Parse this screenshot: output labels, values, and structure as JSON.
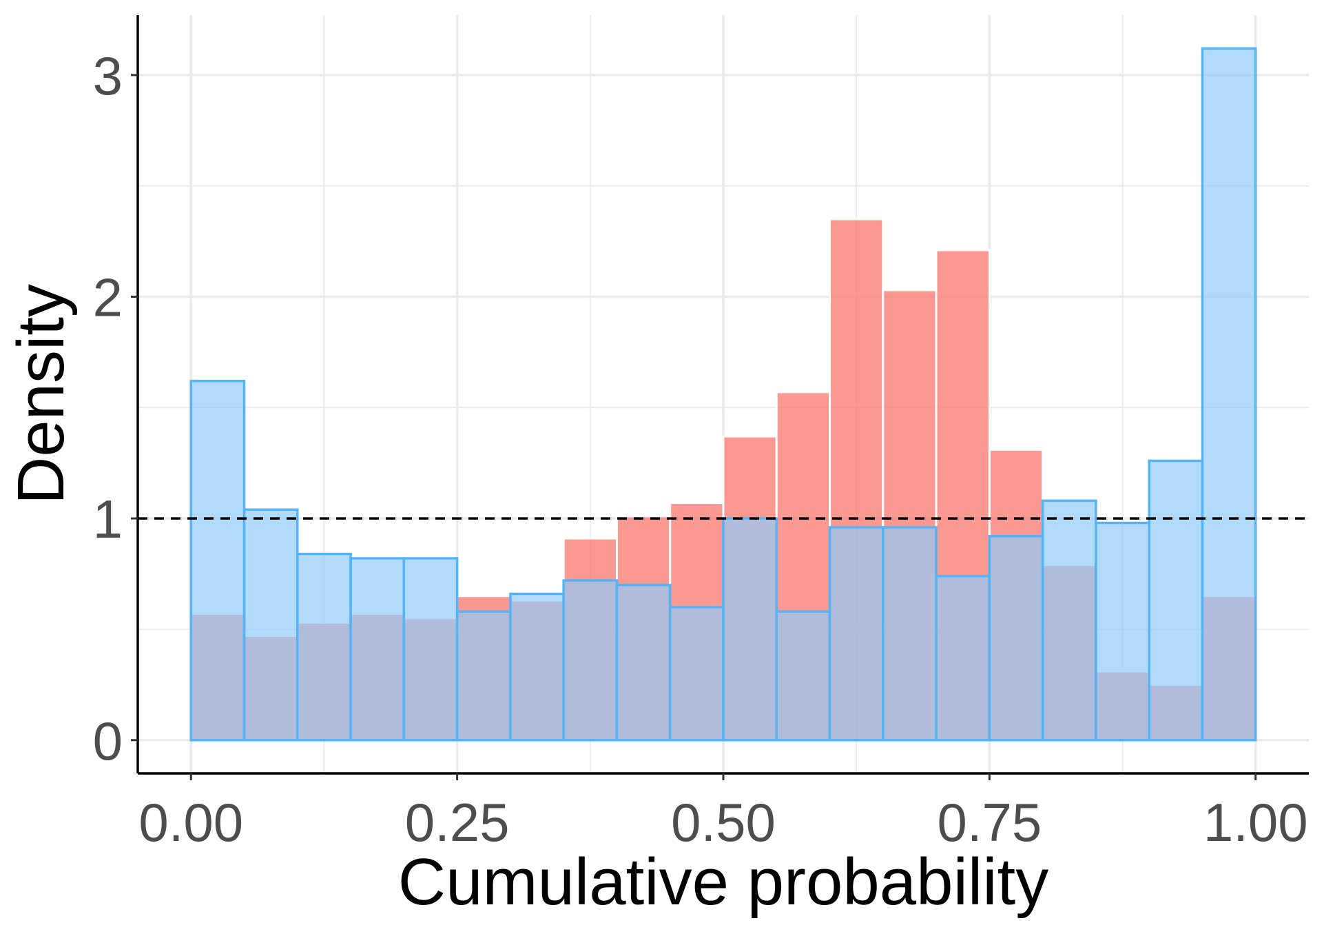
{
  "chart_data": {
    "type": "histogram",
    "xlabel": "Cumulative probability",
    "ylabel": "Density",
    "xlim": [
      -0.05,
      1.05
    ],
    "ylim": [
      -0.15,
      3.27
    ],
    "x_ticks": [
      0.0,
      0.25,
      0.5,
      0.75,
      1.0
    ],
    "x_tick_labels": [
      "0.00",
      "0.25",
      "0.50",
      "0.75",
      "1.00"
    ],
    "y_ticks": [
      0,
      1,
      2,
      3
    ],
    "y_tick_labels": [
      "0",
      "1",
      "2",
      "3"
    ],
    "y_minor_ticks": [
      0.5,
      1.5,
      2.5
    ],
    "x_minor_ticks": [
      0.125,
      0.375,
      0.625,
      0.875
    ],
    "reference_line": {
      "y": 1,
      "style": "dashed",
      "color": "#000000"
    },
    "bins": [
      0.0,
      0.05,
      0.1,
      0.15,
      0.2,
      0.25,
      0.3,
      0.35,
      0.4,
      0.45,
      0.5,
      0.55,
      0.6,
      0.65,
      0.7,
      0.75,
      0.8,
      0.85,
      0.9,
      0.95,
      1.0
    ],
    "series": [
      {
        "name": "red",
        "fill": "#f8766d",
        "opacity": 0.75,
        "outline": "#ffffff",
        "values": [
          0.57,
          0.47,
          0.53,
          0.57,
          0.55,
          0.65,
          0.63,
          0.91,
          1.01,
          1.07,
          1.37,
          1.57,
          2.35,
          2.03,
          2.21,
          1.31,
          0.79,
          0.31,
          0.25,
          0.65
        ]
      },
      {
        "name": "blue",
        "fill": "#92cbfa",
        "opacity": 0.7,
        "outline": "#56b4f5",
        "values": [
          1.62,
          1.04,
          0.84,
          0.82,
          0.82,
          0.58,
          0.66,
          0.72,
          0.7,
          0.6,
          1.0,
          0.58,
          0.96,
          0.96,
          0.74,
          0.92,
          1.08,
          0.98,
          1.26,
          3.12
        ]
      }
    ]
  }
}
